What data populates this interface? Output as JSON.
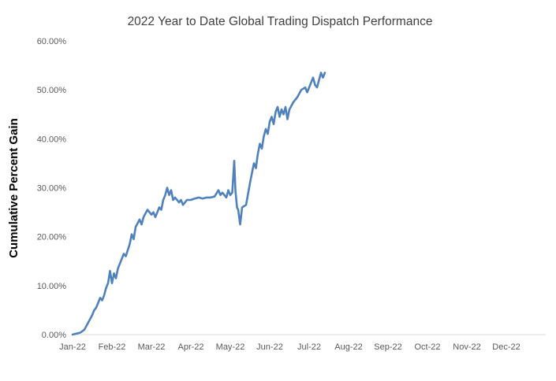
{
  "chart_data": {
    "type": "line",
    "title": "2022 Year to Date Global Trading Dispatch Performance",
    "ylabel": "Cumulative Percent Gain",
    "xlabel": "",
    "legend": false,
    "grid": false,
    "line_color": "#4F81BD",
    "title_color": "#404040",
    "tick_color": "#595959",
    "axis_line_color": "#d9d9d9",
    "ylim": [
      0,
      60
    ],
    "xlim": [
      0,
      12
    ],
    "y_ticks": [
      0,
      10,
      20,
      30,
      40,
      50,
      60
    ],
    "y_tick_labels": [
      "0.00%",
      "10.00%",
      "20.00%",
      "30.00%",
      "40.00%",
      "50.00%",
      "60.00%"
    ],
    "x_tick_labels": [
      "Jan-22",
      "Feb-22",
      "Mar-22",
      "Apr-22",
      "May-22",
      "Jun-22",
      "Jul-22",
      "Aug-22",
      "Sep-22",
      "Oct-22",
      "Nov-22",
      "Dec-22"
    ],
    "series": [
      {
        "name": "Cumulative Percent Gain",
        "x": [
          0,
          0.1,
          0.2,
          0.3,
          0.4,
          0.5,
          0.55,
          0.6,
          0.65,
          0.7,
          0.75,
          0.8,
          0.85,
          0.9,
          0.95,
          1.0,
          1.05,
          1.1,
          1.15,
          1.2,
          1.3,
          1.35,
          1.45,
          1.5,
          1.55,
          1.6,
          1.7,
          1.75,
          1.8,
          1.9,
          2.0,
          2.05,
          2.1,
          2.2,
          2.25,
          2.3,
          2.35,
          2.4,
          2.45,
          2.5,
          2.55,
          2.6,
          2.7,
          2.75,
          2.8,
          2.9,
          3.0,
          3.1,
          3.2,
          3.3,
          3.4,
          3.5,
          3.6,
          3.7,
          3.75,
          3.8,
          3.9,
          3.95,
          4.0,
          4.05,
          4.1,
          4.13,
          4.17,
          4.2,
          4.25,
          4.3,
          4.4,
          4.5,
          4.55,
          4.6,
          4.65,
          4.7,
          4.75,
          4.8,
          4.85,
          4.9,
          4.95,
          5.0,
          5.05,
          5.1,
          5.15,
          5.2,
          5.25,
          5.3,
          5.35,
          5.4,
          5.45,
          5.5,
          5.6,
          5.7,
          5.8,
          5.9,
          5.95,
          6.0,
          6.05,
          6.1,
          6.15,
          6.2,
          6.25,
          6.3,
          6.35,
          6.4
        ],
        "y": [
          0,
          0.2,
          0.4,
          1.0,
          2.5,
          4.0,
          5.0,
          5.5,
          6.5,
          7.5,
          7.0,
          8.0,
          9.5,
          10.5,
          13.0,
          10.5,
          12.5,
          11.5,
          13.5,
          14.5,
          16.5,
          16.0,
          18.5,
          20.5,
          19.5,
          22.0,
          23.5,
          22.5,
          24.0,
          25.5,
          24.5,
          25.0,
          24.0,
          26.0,
          25.5,
          27.5,
          28.5,
          30.0,
          28.5,
          29.5,
          27.5,
          28.0,
          27.0,
          27.5,
          26.5,
          27.5,
          27.5,
          27.8,
          28.0,
          27.8,
          28.0,
          28.0,
          28.2,
          29.5,
          28.5,
          29.0,
          28.0,
          29.5,
          28.5,
          29.0,
          35.5,
          29.5,
          26.0,
          25.5,
          22.5,
          26.0,
          26.5,
          31.0,
          33.0,
          35.0,
          34.0,
          37.0,
          39.0,
          38.0,
          40.5,
          42.0,
          41.0,
          43.5,
          44.5,
          43.0,
          45.5,
          46.5,
          44.5,
          46.0,
          45.0,
          46.5,
          44.0,
          46.0,
          47.5,
          48.5,
          50.0,
          50.5,
          49.5,
          50.5,
          51.5,
          52.5,
          51.0,
          50.5,
          52.0,
          53.5,
          52.5,
          53.5
        ]
      }
    ]
  }
}
